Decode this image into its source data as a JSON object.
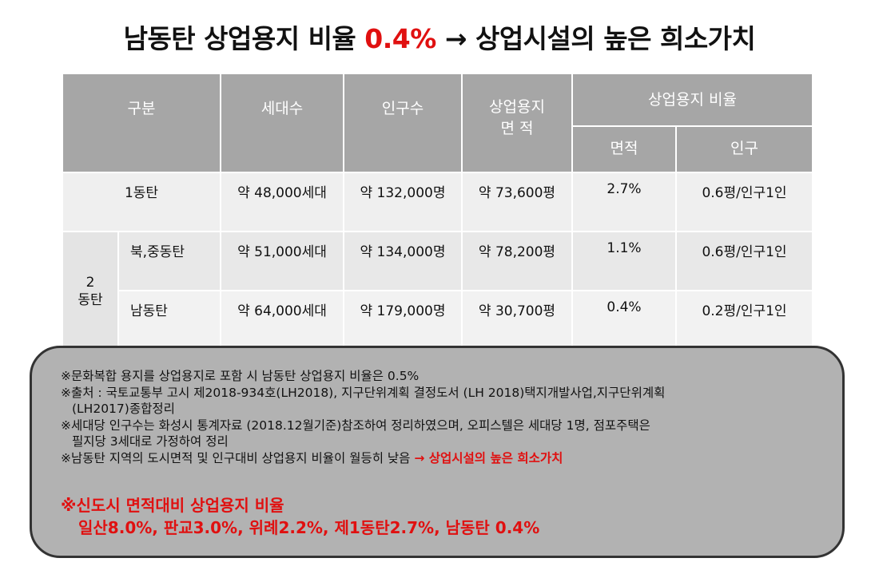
{
  "title": {
    "before": "남동탄 상업용지 비율 ",
    "highlight": "0.4%",
    "after": " → 상업시설의 높은 희소가치"
  },
  "table": {
    "headers": {
      "division": "구분",
      "households": "세대수",
      "population": "인구수",
      "commercial_area_line1": "상업용지",
      "commercial_area_line2": "면  적",
      "ratio": "상업용지 비율",
      "ratio_area": "면적",
      "ratio_population": "인구"
    },
    "group_label_line1": "2",
    "group_label_line2": "동탄",
    "rows": [
      {
        "name": "1동탄",
        "households": "약 48,000세대",
        "population": "약 132,000명",
        "area": "약 73,600평",
        "ratio_area": "2.7%",
        "ratio_pop": "0.6평/인구1인"
      },
      {
        "name": "북,중동탄",
        "households": "약 51,000세대",
        "population": "약 134,000명",
        "area": "약 78,200평",
        "ratio_area": "1.1%",
        "ratio_pop": "0.6평/인구1인"
      },
      {
        "name": "남동탄",
        "households": "약 64,000세대",
        "population": "약 179,000명",
        "area": "약 30,700평",
        "ratio_area": "0.4%",
        "ratio_pop": "0.2평/인구1인"
      }
    ]
  },
  "notes": {
    "n1": "※문화복합 용지를 상업용지로 포함 시 남동탄 상업용지 비율은 0.5%",
    "n2a": "※출처 : 국토교통부 고시 제2018-934호(LH2018), 지구단위계획 결정도서 (LH 2018)택지개발사업,지구단위계획",
    "n2b": "(LH2017)종합정리",
    "n3a": "※세대당 인구수는 화성시 통계자료 (2018.12월기준)참조하여 정리하였으며, 오피스텔은 세대당 1명, 점포주택은",
    "n3b": "필지당 3세대로 가정하여 정리",
    "n4": "※남동탄 지역의 도시면적 및 인구대비 상업용지 비율이 월등히 낮음 ",
    "n4_red": "→ 상업시설의 높은 희소가치",
    "big1": "※신도시 면적대비 상업용지 비율",
    "big2": "일산8.0%, 판교3.0%, 위례2.2%, 제1동탄2.7%, 남동탄 0.4%"
  },
  "colors": {
    "header_bg": "#a6a6a6",
    "highlight_red": "#e01010",
    "note_box_bg": "#b2b2b2"
  }
}
